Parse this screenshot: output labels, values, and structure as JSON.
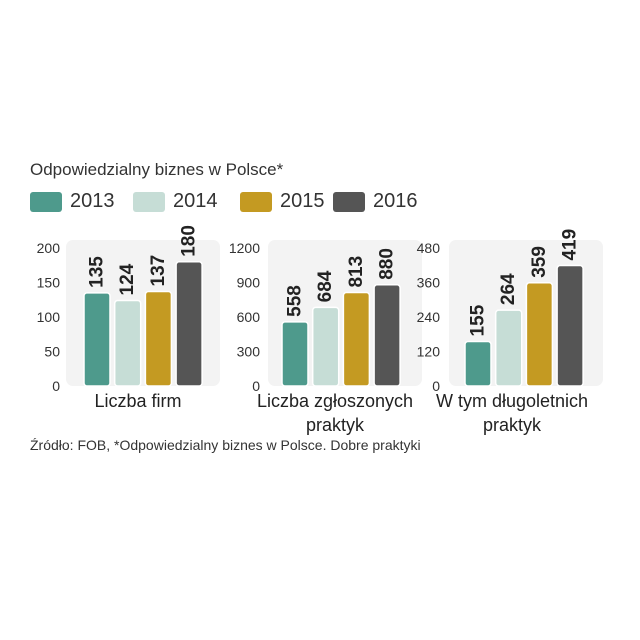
{
  "title": "Odpowiedzialny biznes w Polsce*",
  "legend": [
    {
      "label": "2013",
      "color": "#4e9a8c"
    },
    {
      "label": "2014",
      "color": "#c6ddd6"
    },
    {
      "label": "2015",
      "color": "#c49a22"
    },
    {
      "label": "2016",
      "color": "#555555"
    }
  ],
  "source": "Źródło: FOB, *Odpowiedzialny biznes w Polsce. Dobre praktyki",
  "chart_data": [
    {
      "type": "bar",
      "title": "Liczba firm",
      "title_lines": [
        "Liczba firm"
      ],
      "categories": [
        "2013",
        "2014",
        "2015",
        "2016"
      ],
      "values": [
        135,
        124,
        137,
        180
      ],
      "value_labels": [
        "135",
        "124",
        "137",
        "180"
      ],
      "ylim": [
        0,
        200
      ],
      "yticks": [
        0,
        50,
        100,
        150,
        200
      ],
      "ytick_labels": [
        "0",
        "50",
        "100",
        "150",
        "200"
      ],
      "grid": false,
      "legend_position": "top-left"
    },
    {
      "type": "bar",
      "title": "Liczba zgłoszonych praktyk",
      "title_lines": [
        "Liczba zgłoszonych",
        "praktyk"
      ],
      "categories": [
        "2013",
        "2014",
        "2015",
        "2016"
      ],
      "values": [
        558,
        684,
        813,
        880
      ],
      "value_labels": [
        "558",
        "684",
        "813",
        "880"
      ],
      "ylim": [
        0,
        1200
      ],
      "yticks": [
        0,
        300,
        600,
        900,
        1200
      ],
      "ytick_labels": [
        "0",
        "300",
        "600",
        "900",
        "1200"
      ],
      "grid": false,
      "legend_position": "top-left"
    },
    {
      "type": "bar",
      "title": "W tym długoletnich praktyk",
      "title_lines": [
        "W tym długoletnich",
        "praktyk"
      ],
      "categories": [
        "2013",
        "2014",
        "2015",
        "2016"
      ],
      "values": [
        155,
        264,
        359,
        419
      ],
      "value_labels": [
        "155",
        "264",
        "359",
        "419"
      ],
      "ylim": [
        0,
        480
      ],
      "yticks": [
        0,
        120,
        240,
        360,
        480
      ],
      "ytick_labels": [
        "0",
        "120",
        "240",
        "360",
        "480"
      ],
      "grid": false,
      "legend_position": "top-left"
    }
  ]
}
